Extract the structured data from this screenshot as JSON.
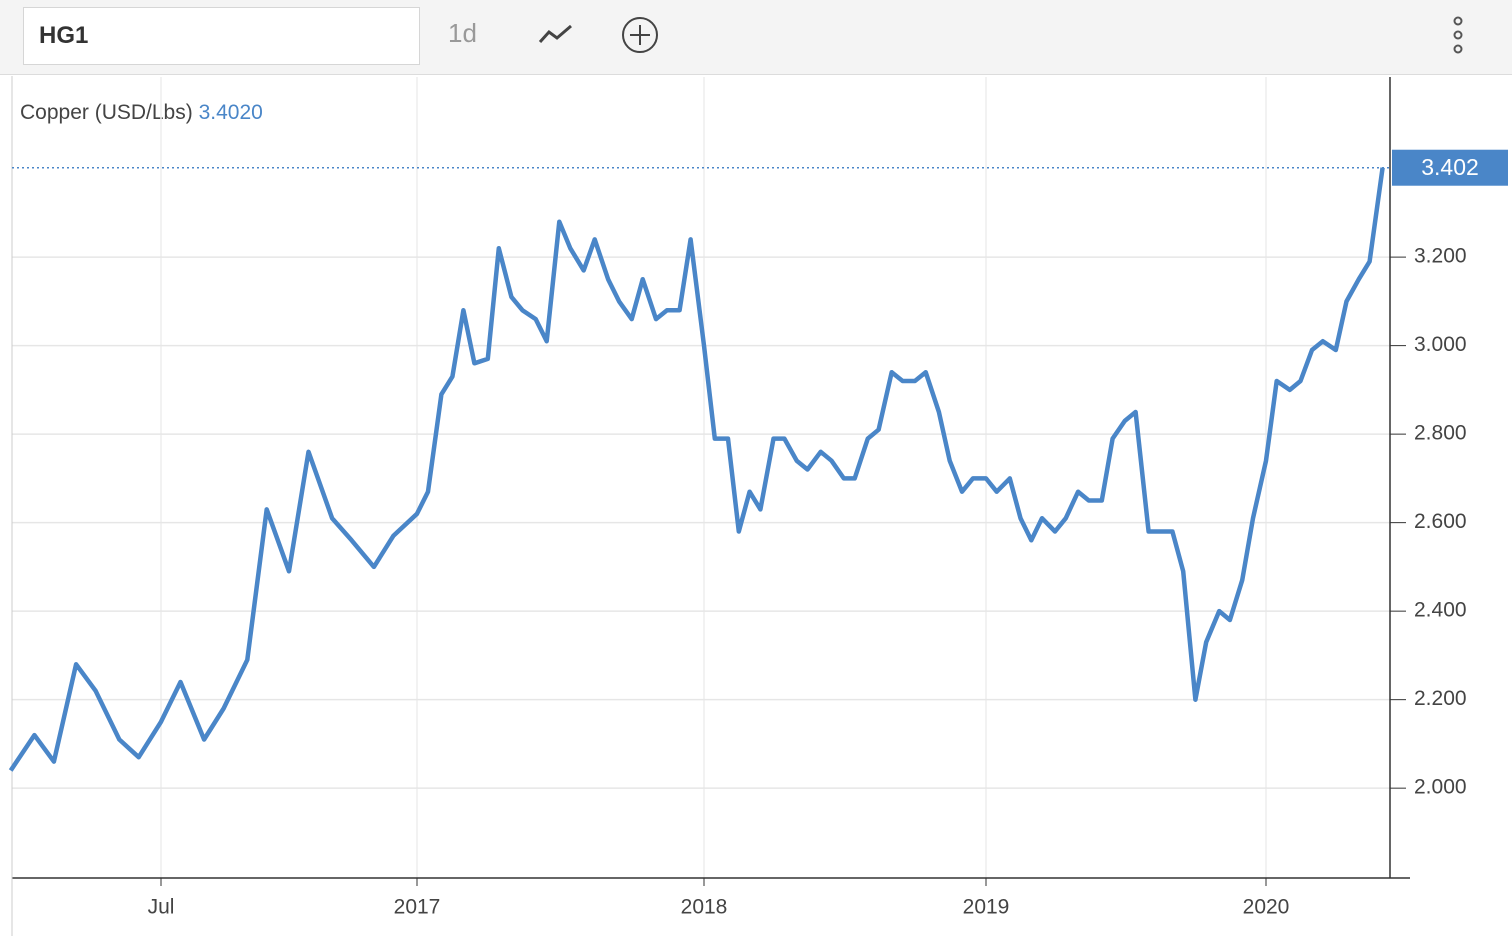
{
  "ui": {
    "symbol": "HG1",
    "interval": "1d"
  },
  "chart_data": {
    "type": "line",
    "legend_value": "3.4020",
    "current_value": 3.402,
    "xlim": [
      "2016-03-15",
      "2020-06-10"
    ],
    "xticks": [
      {
        "value": "2016-07-01",
        "label": "Jul"
      },
      {
        "value": "2017-01-01",
        "label": "2017"
      },
      {
        "value": "2018-01-01",
        "label": "2018"
      },
      {
        "value": "2019-01-01",
        "label": "2019"
      },
      {
        "value": "2020-01-01",
        "label": "2020"
      }
    ],
    "ylim": [
      1.797,
      3.607
    ],
    "yticks": [
      {
        "value": 2,
        "label": "2.000"
      },
      {
        "value": 2.2,
        "label": "2.200"
      },
      {
        "value": 2.4,
        "label": "2.400"
      },
      {
        "value": 2.6,
        "label": "2.600"
      },
      {
        "value": 2.8,
        "label": "2.800"
      },
      {
        "value": 3,
        "label": "3.000"
      },
      {
        "value": 3.2,
        "label": "3.200"
      }
    ],
    "grid": true,
    "series": [
      {
        "name": "Copper (USD/Lbs)",
        "color": "#4a86c8",
        "x": [
          "2016-03-15",
          "2016-04-01",
          "2016-04-15",
          "2016-05-01",
          "2016-05-15",
          "2016-06-01",
          "2016-06-15",
          "2016-07-01",
          "2016-07-15",
          "2016-08-01",
          "2016-08-15",
          "2016-09-01",
          "2016-09-15",
          "2016-10-01",
          "2016-10-15",
          "2016-11-01",
          "2016-11-15",
          "2016-12-01",
          "2016-12-15",
          "2017-01-01",
          "2017-01-15",
          "2017-02-01",
          "2017-02-15",
          "2017-03-01",
          "2017-03-15",
          "2017-04-01",
          "2017-04-15",
          "2017-05-01",
          "2017-05-15",
          "2017-06-01",
          "2017-06-15",
          "2017-07-01",
          "2017-07-15",
          "2017-08-01",
          "2017-08-15",
          "2017-09-01",
          "2017-09-15",
          "2017-10-01",
          "2017-10-15",
          "2017-11-01",
          "2017-11-15",
          "2017-12-01",
          "2017-12-15",
          "2018-01-01",
          "2018-01-15",
          "2018-02-01",
          "2018-02-15",
          "2018-03-01",
          "2018-03-15",
          "2018-04-01",
          "2018-04-15",
          "2018-05-01",
          "2018-05-15",
          "2018-06-01",
          "2018-06-15",
          "2018-07-01",
          "2018-07-15",
          "2018-08-01",
          "2018-08-15",
          "2018-09-01",
          "2018-09-15",
          "2018-10-01",
          "2018-10-15",
          "2018-11-01",
          "2018-11-15",
          "2018-12-01",
          "2018-12-15",
          "2019-01-01",
          "2019-01-15",
          "2019-02-01",
          "2019-02-15",
          "2019-03-01",
          "2019-03-15",
          "2019-04-01",
          "2019-04-15",
          "2019-05-01",
          "2019-05-15",
          "2019-06-01",
          "2019-06-15",
          "2019-07-01",
          "2019-07-15",
          "2019-08-01",
          "2019-08-15",
          "2019-09-01",
          "2019-09-15",
          "2019-10-01",
          "2019-10-15",
          "2019-11-01",
          "2019-11-15",
          "2019-12-01",
          "2019-12-15",
          "2020-01-01",
          "2020-01-15",
          "2020-02-01",
          "2020-02-15",
          "2020-03-01",
          "2020-03-15",
          "2020-04-01",
          "2020-04-15",
          "2020-05-01",
          "2020-05-15",
          "2020-06-01"
        ],
        "values": [
          2.04,
          2.12,
          2.06,
          2.28,
          2.22,
          2.11,
          2.07,
          2.15,
          2.24,
          2.11,
          2.18,
          2.29,
          2.63,
          2.49,
          2.76,
          2.61,
          2.56,
          2.5,
          2.57,
          2.62,
          2.67,
          2.89,
          2.93,
          3.08,
          2.96,
          2.97,
          3.22,
          3.11,
          3.08,
          3.06,
          3.01,
          3.28,
          3.22,
          3.17,
          3.24,
          3.15,
          3.1,
          3.06,
          3.15,
          3.06,
          3.08,
          3.08,
          3.24,
          3.0,
          2.79,
          2.79,
          2.58,
          2.67,
          2.63,
          2.79,
          2.79,
          2.74,
          2.72,
          2.76,
          2.74,
          2.7,
          2.7,
          2.79,
          2.81,
          2.94,
          2.92,
          2.92,
          2.94,
          2.85,
          2.74,
          2.67,
          2.7,
          2.7,
          2.67,
          2.7,
          2.61,
          2.56,
          2.61,
          2.58,
          2.61,
          2.67,
          2.65,
          2.65,
          2.79,
          2.83,
          2.85,
          2.58,
          2.58,
          2.58,
          2.49,
          2.2,
          2.33,
          2.4,
          2.38,
          2.47,
          2.61,
          2.74,
          2.92,
          2.9,
          2.92,
          2.99,
          3.01,
          2.99,
          3.1,
          3.15,
          3.19,
          3.402
        ]
      }
    ]
  }
}
